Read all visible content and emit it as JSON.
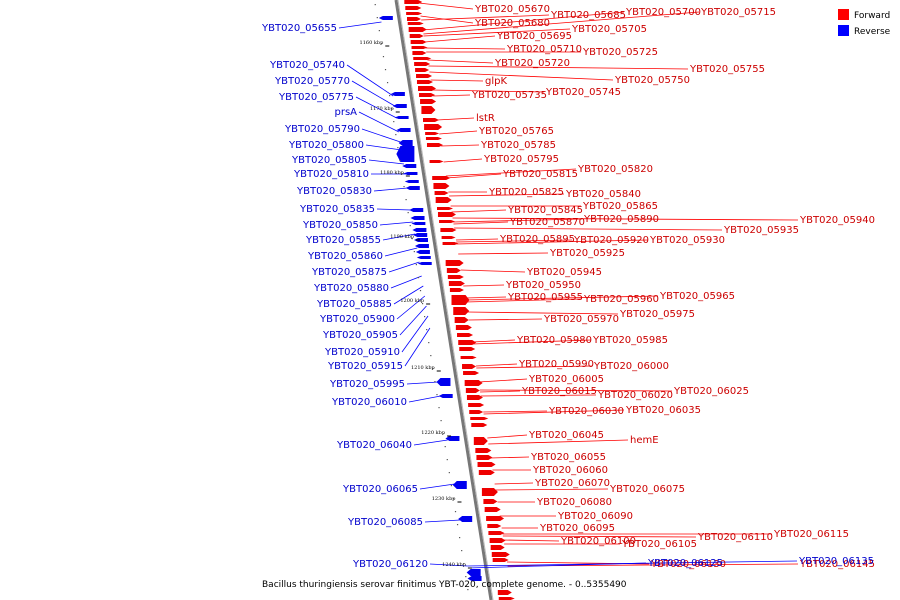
{
  "caption": "Bacillus thuringiensis serovar finitimus YBT-020, complete genome. - 0..5355490",
  "legend": {
    "forward_label": "Forward",
    "reverse_label": "Reverse",
    "forward_color": "#ff0000",
    "reverse_color": "#0000ff"
  },
  "ticks": [
    "1160 kbp",
    "1170 kbp",
    "1180 kbp",
    "1190 kbp",
    "1200 kbp",
    "1210 kbp",
    "1220 kbp",
    "1230 kbp",
    "1240 kbp"
  ],
  "forward_labels": [
    "YBT020_05670",
    "YBT020_05680",
    "YBT020_05685",
    "YBT020_05700",
    "YBT020_05715",
    "YBT020_05695",
    "YBT020_05705",
    "YBT020_05710",
    "YBT020_05725",
    "YBT020_05720",
    "YBT020_05755",
    "glpK",
    "YBT020_05750",
    "YBT020_05735",
    "YBT020_05745",
    "lstR",
    "YBT020_05765",
    "YBT020_05785",
    "YBT020_05795",
    "YBT020_05820",
    "YBT020_05815",
    "YBT020_05825",
    "YBT020_05840",
    "YBT020_05865",
    "YBT020_05845",
    "YBT020_05940",
    "YBT020_05870",
    "YBT020_05890",
    "YBT020_05935",
    "YBT020_05895",
    "YBT020_05920",
    "YBT020_05930",
    "YBT020_05925",
    "YBT020_05945",
    "YBT020_05950",
    "YBT020_05955",
    "YBT020_05960",
    "YBT020_05965",
    "YBT020_05975",
    "YBT020_05970",
    "YBT020_05980",
    "YBT020_05985",
    "YBT020_05990",
    "YBT020_06000",
    "YBT020_06005",
    "YBT020_06015",
    "YBT020_06025",
    "YBT020_06020",
    "YBT020_06030",
    "YBT020_06035",
    "YBT020_06045",
    "hemE",
    "YBT020_06055",
    "YBT020_06060",
    "YBT020_06070",
    "YBT020_06075",
    "YBT020_06080",
    "YBT020_06090",
    "YBT020_06095",
    "YBT020_06100",
    "YBT020_06110",
    "YBT020_06115",
    "YBT020_06105",
    "YBT020_06130",
    "YBT020_06145"
  ],
  "reverse_labels": [
    "YBT020_05655",
    "YBT020_05740",
    "YBT020_05770",
    "YBT020_05775",
    "prsA",
    "YBT020_05790",
    "YBT020_05800",
    "YBT020_05805",
    "YBT020_05810",
    "YBT020_05830",
    "YBT020_05835",
    "YBT020_05850",
    "YBT020_05855",
    "YBT020_05860",
    "YBT020_05875",
    "YBT020_05880",
    "YBT020_05885",
    "YBT020_05900",
    "YBT020_05905",
    "YBT020_05910",
    "YBT020_05915",
    "YBT020_05995",
    "YBT020_06010",
    "YBT020_06040",
    "YBT020_06065",
    "YBT020_06085",
    "YBT020_06120",
    "YBT020_06125",
    "YBT020_06135"
  ]
}
